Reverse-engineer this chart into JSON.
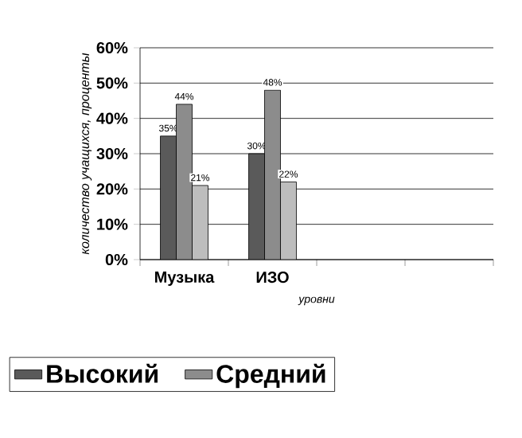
{
  "chart_data": {
    "type": "bar",
    "xlabel": "уровни",
    "ylabel": "количество учащихся, проценты",
    "categories": [
      "Музыка",
      "ИЗО",
      null,
      null
    ],
    "series": [
      {
        "name": "Высокий",
        "color": "#5a5a5a",
        "values": [
          35,
          30,
          null,
          null
        ],
        "value_labels": [
          "35%",
          "30%",
          null,
          null
        ]
      },
      {
        "name": "Средний",
        "color": "#8c8c8c",
        "values": [
          44,
          48,
          null,
          null
        ],
        "value_labels": [
          "44%",
          "48%",
          null,
          null
        ]
      },
      {
        "color": "#bdbdbd",
        "values": [
          21,
          22,
          null,
          null
        ],
        "value_labels": [
          "21%",
          "22%",
          null,
          null
        ]
      }
    ],
    "ylim": [
      0,
      60
    ],
    "yticks": [
      {
        "value": 0,
        "label": "0%"
      },
      {
        "value": 10,
        "label": "10%"
      },
      {
        "value": 20,
        "label": "20%"
      },
      {
        "value": 30,
        "label": "30%"
      },
      {
        "value": 40,
        "label": "40%"
      },
      {
        "value": 50,
        "label": "50%"
      },
      {
        "value": 60,
        "label": "60%"
      }
    ],
    "grid": "y",
    "legend": "bottom"
  }
}
